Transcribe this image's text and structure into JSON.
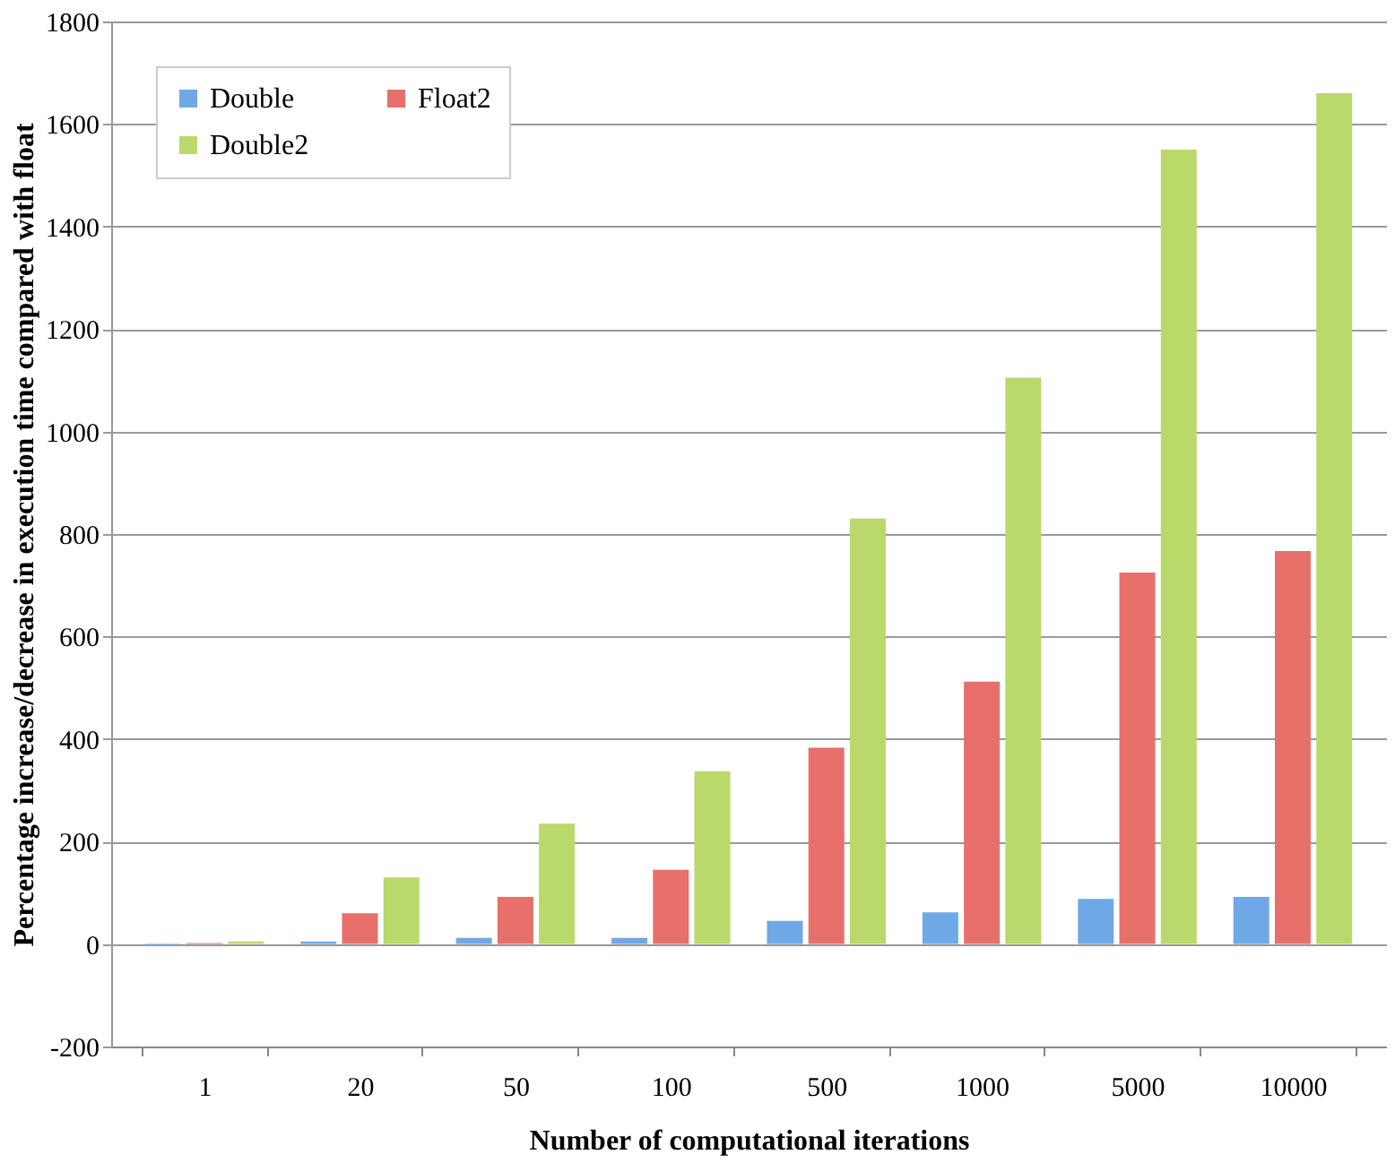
{
  "chart_data": {
    "type": "bar",
    "xlabel": "Number of computational iterations",
    "ylabel": "Percentage increase/decrease in execution time compared with float",
    "categories": [
      "1",
      "20",
      "50",
      "100",
      "500",
      "1000",
      "5000",
      "10000"
    ],
    "series": [
      {
        "name": "Double",
        "color": "#6fa8e6",
        "values": [
          -2,
          5,
          12,
          12,
          45,
          62,
          88,
          92
        ]
      },
      {
        "name": "Float2",
        "color": "#e8706a",
        "values": [
          2,
          60,
          92,
          145,
          383,
          512,
          725,
          767
        ]
      },
      {
        "name": "Double2",
        "color": "#b9d96a",
        "values": [
          5,
          130,
          235,
          337,
          830,
          1105,
          1550,
          1660
        ]
      }
    ],
    "ylim": [
      -200,
      1800
    ],
    "yticks": [
      -200,
      0,
      200,
      400,
      600,
      800,
      1000,
      1200,
      1400,
      1600,
      1800
    ],
    "grid": "y",
    "legend": "top left"
  }
}
